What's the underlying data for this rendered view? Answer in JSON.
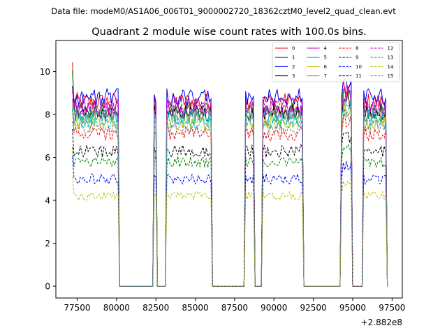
{
  "figure": {
    "suptitle": "Data file: modeM0/AS1A06_006T01_9000002720_18362cztM0_level2_quad_clean.evt"
  },
  "chart_data": {
    "type": "line",
    "title": "Quadrant 2 module wise count rates with 100.0s bins.",
    "xlabel": "",
    "ylabel": "",
    "x_offset_label": "+2.882e8",
    "xlim": [
      76150,
      98150
    ],
    "ylim": [
      -0.55,
      11.45
    ],
    "x_ticks": [
      77500,
      80000,
      82500,
      85000,
      87500,
      90000,
      92500,
      95000,
      97500
    ],
    "x_tick_labels": [
      "77500",
      "80000",
      "82500",
      "85000",
      "87500",
      "90000",
      "92500",
      "95000",
      "97500"
    ],
    "y_ticks": [
      0,
      2,
      4,
      6,
      8,
      10
    ],
    "y_tick_labels": [
      "0",
      "2",
      "4",
      "6",
      "8",
      "10"
    ],
    "bin_seconds": 100,
    "legend_location": "upper right",
    "legend_columns": 4,
    "time_bins": {
      "start": 77200,
      "end": 97200,
      "step": 100,
      "active_intervals": [
        [
          77200,
          80200
        ],
        [
          82400,
          82600
        ],
        [
          83200,
          86100
        ],
        [
          88200,
          88800
        ],
        [
          89300,
          91900
        ],
        [
          94300,
          95000
        ],
        [
          95700,
          97200
        ]
      ]
    },
    "series": [
      {
        "name": "0",
        "color": "#ff0000",
        "dash": "solid",
        "level": 8.6,
        "start_value": 10.3
      },
      {
        "name": "1",
        "color": "#008000",
        "dash": "solid",
        "level": 8.2,
        "start_value": 9.7
      },
      {
        "name": "2",
        "color": "#0000ff",
        "dash": "solid",
        "level": 8.8,
        "start_value": 9.3
      },
      {
        "name": "3",
        "color": "#000000",
        "dash": "solid",
        "level": 8.1,
        "start_value": 9.3
      },
      {
        "name": "4",
        "color": "#bf00bf",
        "dash": "solid",
        "level": 8.3,
        "start_value": 9.0
      },
      {
        "name": "5",
        "color": "#00bfbf",
        "dash": "solid",
        "level": 7.9,
        "start_value": 8.7
      },
      {
        "name": "6",
        "color": "#bfbf00",
        "dash": "solid",
        "level": 7.6,
        "start_value": 8.4
      },
      {
        "name": "7",
        "color": "#808080",
        "dash": "solid",
        "level": 8.0,
        "start_value": 8.5
      },
      {
        "name": "8",
        "color": "#ff0000",
        "dash": "dashed",
        "level": 7.1,
        "start_value": 7.9
      },
      {
        "name": "9",
        "color": "#008000",
        "dash": "dashed",
        "level": 5.8,
        "start_value": 6.6
      },
      {
        "name": "10",
        "color": "#0000ff",
        "dash": "dashed",
        "level": 5.0,
        "start_value": 6.0
      },
      {
        "name": "11",
        "color": "#000000",
        "dash": "dashed",
        "level": 6.3,
        "start_value": 7.1
      },
      {
        "name": "12",
        "color": "#bf00bf",
        "dash": "dashed",
        "level": 8.4,
        "start_value": 9.0
      },
      {
        "name": "13",
        "color": "#00bfbf",
        "dash": "dashed",
        "level": 7.7,
        "start_value": 8.3
      },
      {
        "name": "14",
        "color": "#bfbf00",
        "dash": "dashed",
        "level": 4.2,
        "start_value": 5.0
      },
      {
        "name": "15",
        "color": "#808080",
        "dash": "dashed",
        "level": 7.4,
        "start_value": 8.0
      }
    ]
  }
}
